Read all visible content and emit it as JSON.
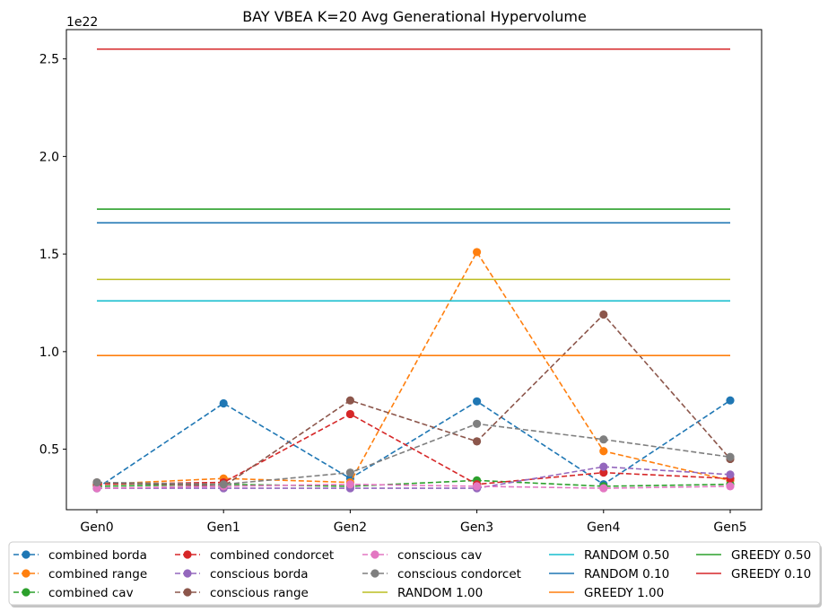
{
  "chart_data": {
    "type": "line",
    "title": "BAY VBEA K=20 Avg Generational Hypervolume",
    "xlabel": "",
    "ylabel": "",
    "y_offset_label": "1e22",
    "categories": [
      "Gen0",
      "Gen1",
      "Gen2",
      "Gen3",
      "Gen4",
      "Gen5"
    ],
    "ylim": [
      0.19,
      2.65
    ],
    "yticks": [
      0.5,
      1.0,
      1.5,
      2.0,
      2.5
    ],
    "ytick_labels": [
      "0.5",
      "1.0",
      "1.5",
      "2.0",
      "2.5"
    ],
    "grid": false,
    "legend_position": "bottom",
    "series": [
      {
        "name": "combined borda",
        "style": "dashed-marker",
        "color": "#1f77b4",
        "values": [
          0.3,
          0.735,
          0.35,
          0.745,
          0.32,
          0.75
        ]
      },
      {
        "name": "combined range",
        "style": "dashed-marker",
        "color": "#ff7f0e",
        "values": [
          0.32,
          0.35,
          0.33,
          1.51,
          0.49,
          0.34
        ]
      },
      {
        "name": "combined cav",
        "style": "dashed-marker",
        "color": "#2ca02c",
        "values": [
          0.31,
          0.32,
          0.31,
          0.34,
          0.31,
          0.32
        ]
      },
      {
        "name": "combined condorcet",
        "style": "dashed-marker",
        "color": "#d62728",
        "values": [
          0.32,
          0.33,
          0.68,
          0.32,
          0.38,
          0.35
        ]
      },
      {
        "name": "conscious borda",
        "style": "dashed-marker",
        "color": "#9467bd",
        "values": [
          0.3,
          0.3,
          0.3,
          0.3,
          0.41,
          0.37
        ]
      },
      {
        "name": "conscious range",
        "style": "dashed-marker",
        "color": "#8c564b",
        "values": [
          0.33,
          0.31,
          0.75,
          0.54,
          1.19,
          0.45
        ]
      },
      {
        "name": "conscious cav",
        "style": "dashed-marker",
        "color": "#e377c2",
        "values": [
          0.3,
          0.31,
          0.32,
          0.31,
          0.3,
          0.31
        ]
      },
      {
        "name": "conscious condorcet",
        "style": "dashed-marker",
        "color": "#7f7f7f",
        "values": [
          0.33,
          0.32,
          0.38,
          0.63,
          0.55,
          0.46
        ]
      },
      {
        "name": "RANDOM 1.00",
        "style": "solid",
        "color": "#bcbd22",
        "values": [
          1.37,
          1.37,
          1.37,
          1.37,
          1.37,
          1.37
        ]
      },
      {
        "name": "RANDOM 0.50",
        "style": "solid",
        "color": "#17becf",
        "values": [
          1.26,
          1.26,
          1.26,
          1.26,
          1.26,
          1.26
        ]
      },
      {
        "name": "RANDOM 0.10",
        "style": "solid",
        "color": "#1f77b4",
        "values": [
          1.66,
          1.66,
          1.66,
          1.66,
          1.66,
          1.66
        ]
      },
      {
        "name": "GREEDY 1.00",
        "style": "solid",
        "color": "#ff7f0e",
        "values": [
          0.98,
          0.98,
          0.98,
          0.98,
          0.98,
          0.98
        ]
      },
      {
        "name": "GREEDY 0.50",
        "style": "solid",
        "color": "#2ca02c",
        "values": [
          1.73,
          1.73,
          1.73,
          1.73,
          1.73,
          1.73
        ]
      },
      {
        "name": "GREEDY 0.10",
        "style": "solid",
        "color": "#d62728",
        "values": [
          2.55,
          2.55,
          2.55,
          2.55,
          2.55,
          2.55
        ]
      }
    ]
  }
}
